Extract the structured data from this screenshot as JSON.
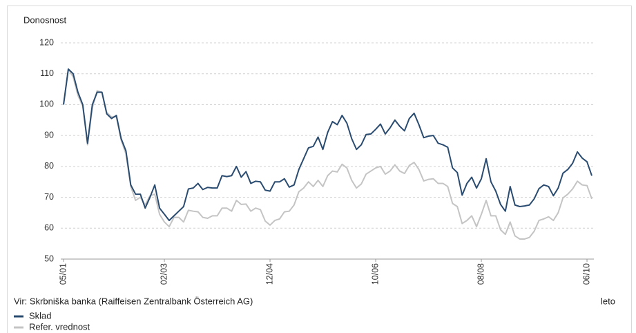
{
  "chart_data": {
    "type": "line",
    "y_label": "Donosnost",
    "x_label": "leto",
    "source": "Vir: Skrbniška banka (Raiffeisen Zentralbank Österreich AG)",
    "categories": [
      "05/01",
      null,
      null,
      null,
      null,
      null,
      null,
      null,
      null,
      null,
      null,
      null,
      null,
      null,
      null,
      null,
      null,
      null,
      null,
      null,
      null,
      "02/03",
      null,
      null,
      null,
      null,
      null,
      null,
      null,
      null,
      null,
      null,
      null,
      null,
      null,
      null,
      null,
      null,
      null,
      null,
      null,
      null,
      null,
      "12/04",
      null,
      null,
      null,
      null,
      null,
      null,
      null,
      null,
      null,
      null,
      null,
      null,
      null,
      null,
      null,
      null,
      null,
      null,
      null,
      null,
      null,
      "10/06",
      null,
      null,
      null,
      null,
      null,
      null,
      null,
      null,
      null,
      null,
      null,
      null,
      null,
      null,
      null,
      null,
      null,
      null,
      null,
      null,
      null,
      "08/08",
      null,
      null,
      null,
      null,
      null,
      null,
      null,
      null,
      null,
      null,
      null,
      null,
      null,
      null,
      null,
      null,
      null,
      null,
      null,
      null,
      null,
      "06/10",
      null
    ],
    "series": [
      {
        "name": "Sklad",
        "color": "#2a4b70",
        "values": [
          100,
          111.5,
          110,
          104,
          100,
          87.5,
          100,
          104,
          104,
          97,
          95.5,
          96.5,
          89,
          85,
          74,
          71,
          71,
          66.5,
          70,
          74,
          66.5,
          64.5,
          62.5,
          64,
          65.5,
          67,
          72.7,
          73,
          74.5,
          72.5,
          73.2,
          73,
          73,
          77,
          76.7,
          77,
          80,
          76.5,
          78.3,
          74.5,
          75.2,
          75,
          72.3,
          72,
          75,
          75,
          76,
          73.3,
          74,
          79,
          82.5,
          86,
          86.5,
          89.5,
          85.5,
          91,
          94.5,
          93.5,
          96.5,
          94,
          89,
          85.5,
          87,
          90.3,
          90.5,
          92,
          93.7,
          90.5,
          92.5,
          95,
          93,
          91.5,
          95.5,
          97.2,
          93.5,
          89.3,
          89.8,
          90,
          87.5,
          87,
          86.2,
          79.5,
          78,
          70.7,
          74.5,
          76.5,
          73,
          76,
          82.5,
          75,
          72,
          67.7,
          65.5,
          73.5,
          67.5,
          67,
          67.2,
          67.5,
          69.5,
          72.8,
          74,
          73.5,
          70.5,
          73,
          77.8,
          79,
          81,
          84.7,
          82.7,
          81.5,
          77
        ]
      },
      {
        "name": "Refer. vrednost",
        "color": "#c4c4c4",
        "values": [
          100,
          111.5,
          109,
          103,
          99.5,
          87,
          99,
          104.5,
          104,
          97.5,
          96,
          96,
          88.5,
          84,
          73.5,
          69,
          70,
          67.5,
          70.5,
          71,
          64.5,
          62,
          60.5,
          63.5,
          63.5,
          62,
          65.8,
          65.5,
          65.3,
          63.5,
          63.2,
          64,
          64,
          66.5,
          66.5,
          65.5,
          69,
          67.7,
          67.8,
          65.5,
          66.5,
          66,
          62.3,
          61,
          62.5,
          63,
          65.3,
          65.5,
          67.5,
          71.8,
          73,
          75,
          73.5,
          75.5,
          73.5,
          77,
          78.5,
          78.2,
          80.7,
          79.5,
          75.5,
          73,
          74.3,
          77.5,
          78.5,
          79.5,
          80,
          77.5,
          78.5,
          80.5,
          78.5,
          77.7,
          80.3,
          81.3,
          79,
          75.3,
          75.8,
          76,
          74.5,
          74.5,
          73.5,
          68,
          67,
          61.5,
          62.5,
          64,
          60.5,
          64.5,
          69,
          64,
          64,
          59.5,
          58,
          62,
          57.5,
          56.5,
          56.5,
          57,
          59,
          62.5,
          63,
          63.7,
          62.5,
          65,
          69.8,
          71,
          72.7,
          75.2,
          74,
          73.8,
          69.5
        ]
      }
    ],
    "ylim": [
      50,
      120
    ],
    "yticks": [
      50,
      60,
      70,
      80,
      90,
      100,
      110,
      120
    ],
    "grid": true
  }
}
